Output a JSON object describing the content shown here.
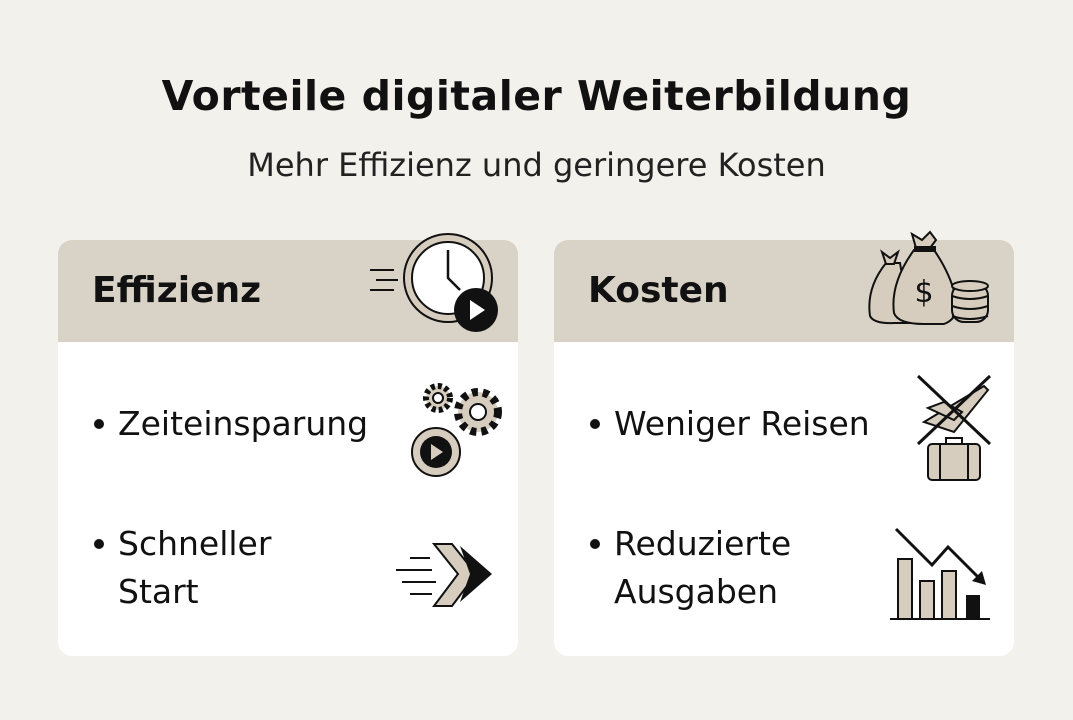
{
  "title": "Vorteile digitaler Weiterbildung",
  "subtitle": "Mehr Effizienz und geringere Kosten",
  "colors": {
    "background": "#f3f1ec",
    "header": "#d9d2c7",
    "icon_fill": "#d6cdbf",
    "text": "#111111"
  },
  "cards": [
    {
      "title": "Effizienz",
      "icon": "clock-play-icon",
      "items": [
        {
          "label": "Zeiteinsparung",
          "icon": "gears-play-icon"
        },
        {
          "label": "Schneller Start",
          "icon": "fast-forward-arrows-icon"
        }
      ]
    },
    {
      "title": "Kosten",
      "icon": "money-bags-coins-icon",
      "items": [
        {
          "label": "Weniger Reisen",
          "icon": "crossed-plane-suitcase-icon"
        },
        {
          "label": "Reduzierte Ausgaben",
          "icon": "declining-bar-chart-icon"
        }
      ]
    }
  ]
}
